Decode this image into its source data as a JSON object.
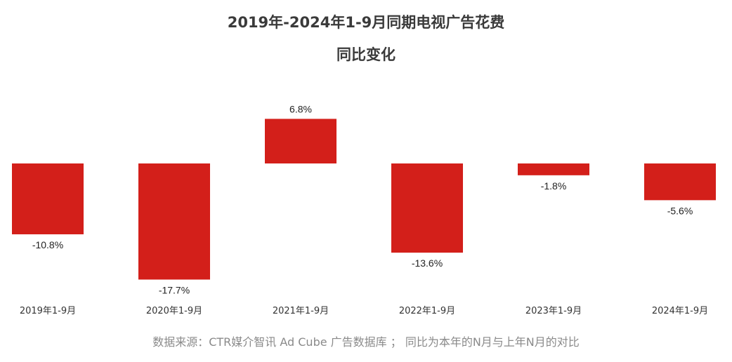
{
  "chart_data": {
    "type": "bar",
    "title": "2019年-2024年1-9月同期电视广告花费",
    "subtitle": "同比变化",
    "categories": [
      "2019年1-9月",
      "2020年1-9月",
      "2021年1-9月",
      "2022年1-9月",
      "2023年1-9月",
      "2024年1-9月"
    ],
    "values": [
      -10.8,
      -17.7,
      6.8,
      -13.6,
      -1.8,
      -5.6
    ],
    "value_labels": [
      "-10.8%",
      "-17.7%",
      "6.8%",
      "-13.6%",
      "-1.8%",
      "-5.6%"
    ],
    "xlabel": "",
    "ylabel": "",
    "grid": false,
    "bar_color": "#d31f1a"
  },
  "source_note": "数据来源：CTR媒介智讯 Ad Cube 广告数据库 ； 同比为本年的N月与上年N月的对比"
}
